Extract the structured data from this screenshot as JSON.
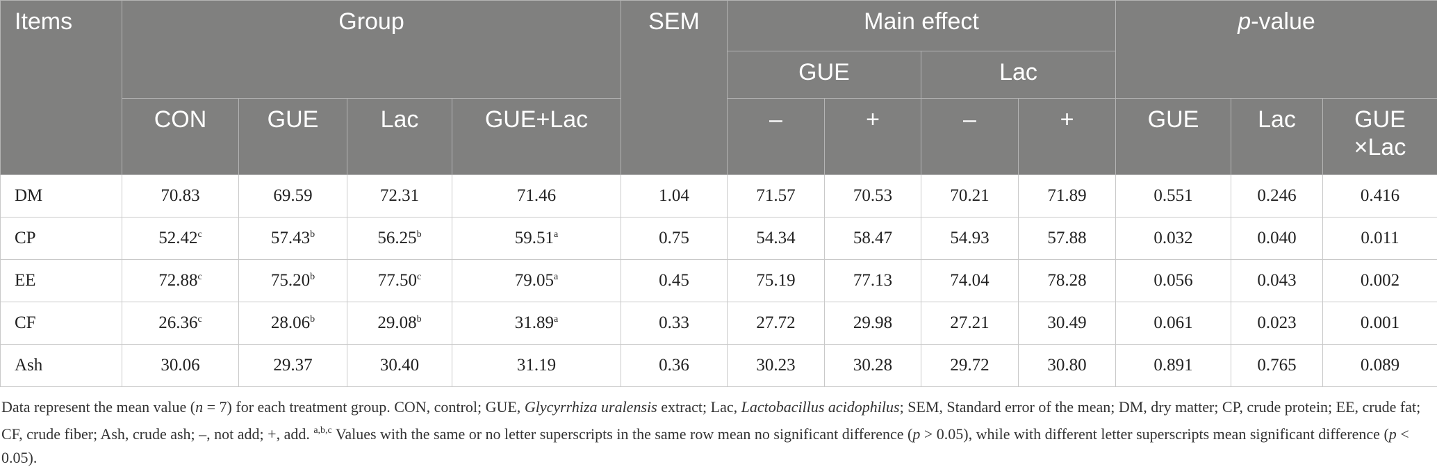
{
  "header": {
    "items": "Items",
    "group": "Group",
    "sem": "SEM",
    "main_effect": "Main effect",
    "p_value": [
      {
        "text": "p",
        "italic": true
      },
      {
        "text": "-value"
      }
    ],
    "main_gue": "GUE",
    "main_lac": "Lac",
    "columns": [
      "CON",
      "GUE",
      "Lac",
      "GUE+Lac",
      "–",
      "+",
      "–",
      "+",
      "GUE",
      "Lac",
      "GUE\n×Lac"
    ]
  },
  "table": {
    "rows": [
      {
        "item": "DM",
        "cells": [
          "70.83",
          "69.59",
          "72.31",
          "71.46",
          "1.04",
          "71.57",
          "70.53",
          "70.21",
          "71.89",
          "0.551",
          "0.246",
          "0.416"
        ]
      },
      {
        "item": "CP",
        "cells": [
          {
            "text": "52.42",
            "sup": "c"
          },
          {
            "text": "57.43",
            "sup": "b"
          },
          {
            "text": "56.25",
            "sup": "b"
          },
          {
            "text": "59.51",
            "sup": "a"
          },
          "0.75",
          "54.34",
          "58.47",
          "54.93",
          "57.88",
          "0.032",
          "0.040",
          "0.011"
        ]
      },
      {
        "item": "EE",
        "cells": [
          {
            "text": "72.88",
            "sup": "c"
          },
          {
            "text": "75.20",
            "sup": "b"
          },
          {
            "text": "77.50",
            "sup": "c"
          },
          {
            "text": "79.05",
            "sup": "a"
          },
          "0.45",
          "75.19",
          "77.13",
          "74.04",
          "78.28",
          "0.056",
          "0.043",
          "0.002"
        ]
      },
      {
        "item": "CF",
        "cells": [
          {
            "text": "26.36",
            "sup": "c"
          },
          {
            "text": "28.06",
            "sup": "b"
          },
          {
            "text": "29.08",
            "sup": "b"
          },
          {
            "text": "31.89",
            "sup": "a"
          },
          "0.33",
          "27.72",
          "29.98",
          "27.21",
          "30.49",
          "0.061",
          "0.023",
          "0.001"
        ]
      },
      {
        "item": "Ash",
        "cells": [
          "30.06",
          "29.37",
          "30.40",
          "31.19",
          "0.36",
          "30.23",
          "30.28",
          "29.72",
          "30.80",
          "0.891",
          "0.765",
          "0.089"
        ]
      }
    ]
  },
  "footnote": [
    {
      "text": "Data represent the mean value ("
    },
    {
      "text": "n",
      "italic": true
    },
    {
      "text": " = 7) for each treatment group. CON, control; GUE, "
    },
    {
      "text": "Glycyrrhiza uralensis",
      "italic": true
    },
    {
      "text": " extract; Lac, "
    },
    {
      "text": "Lactobacillus acidophilus",
      "italic": true
    },
    {
      "text": "; SEM, Standard error of the mean; DM, dry matter; CP, crude protein; EE, crude fat; CF, crude fiber; Ash, crude ash; –, not add; +, add. "
    },
    {
      "text": "a,b,c",
      "sup": true
    },
    {
      "text": " Values with the same or no letter superscripts in the same row mean no significant difference ("
    },
    {
      "text": "p",
      "italic": true
    },
    {
      "text": " > 0.05), while with different letter superscripts mean significant difference ("
    },
    {
      "text": "p",
      "italic": true
    },
    {
      "text": " < 0.05)."
    }
  ]
}
